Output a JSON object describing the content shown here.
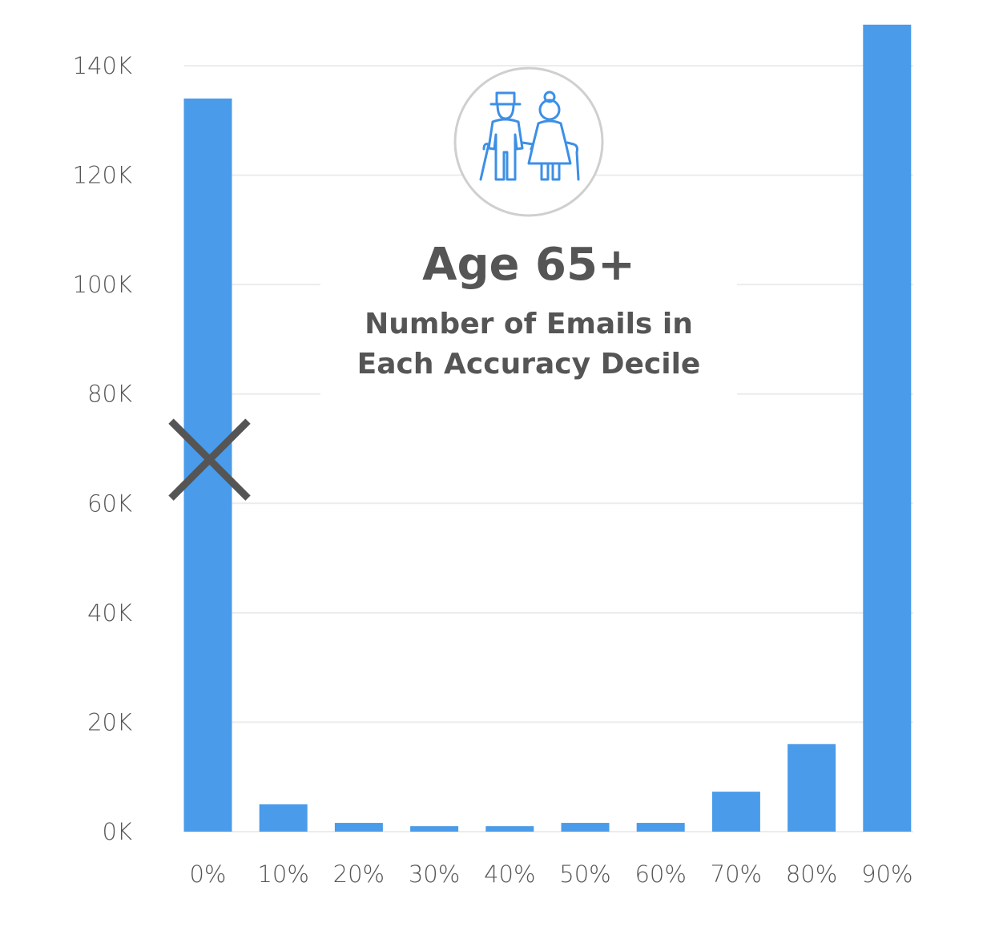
{
  "chart_data": {
    "type": "bar",
    "title": "Age 65+",
    "subtitle_lines": [
      "Number of Emails in",
      "Each Accuracy Decile"
    ],
    "categories": [
      "0%",
      "10%",
      "20%",
      "30%",
      "40%",
      "50%",
      "60%",
      "70%",
      "80%",
      "90%"
    ],
    "values": [
      134000,
      5000,
      1600,
      1000,
      1000,
      1600,
      1600,
      7300,
      16000,
      147500
    ],
    "ylim": [
      0,
      140000
    ],
    "y_ticks": [
      0,
      20000,
      40000,
      60000,
      80000,
      100000,
      120000,
      140000
    ],
    "y_tick_labels": [
      "0K",
      "20K",
      "40K",
      "60K",
      "80K",
      "100K",
      "120K",
      "140K"
    ],
    "grid": true,
    "bar_color": "#4a9be9",
    "grid_color": "#ececec",
    "text_color": "#555555",
    "icon_color": "#3d8fe6",
    "marker": {
      "type": "x",
      "category": "0%",
      "value": 68000,
      "color": "#555555"
    },
    "icon": "elderly-couple-icon"
  }
}
